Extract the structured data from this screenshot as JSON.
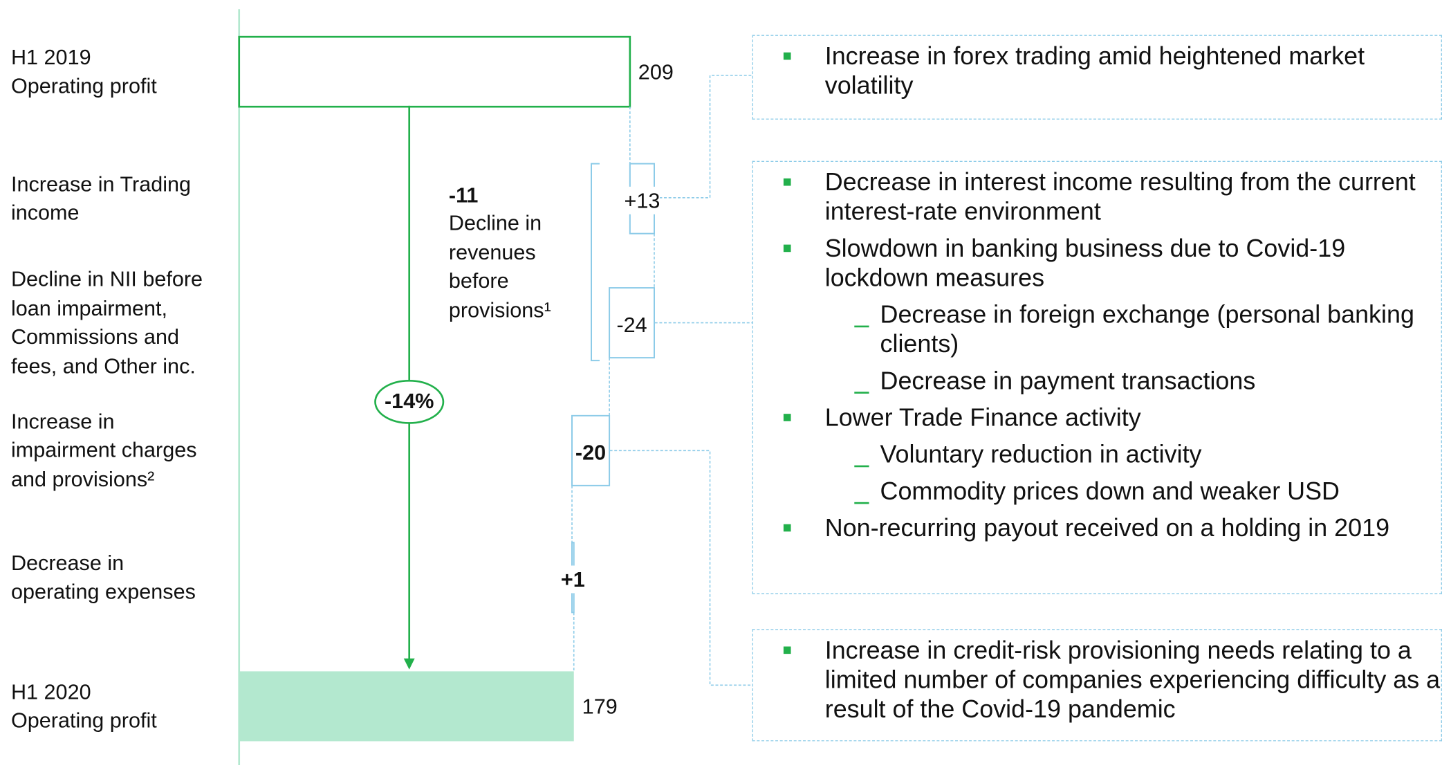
{
  "chart_data": {
    "type": "waterfall",
    "orientation": "horizontal",
    "categories": [
      "H1 2019\nOperating profit",
      "Increase in Trading\nincome",
      "Decline in NII before\nloan impairment,\nCommissions and\nfees, and Other inc.",
      "Increase in\nimpairment charges\nand provisions²",
      "Decrease in\noperating expenses",
      "H1 2020\nOperating profit"
    ],
    "values": [
      209,
      13,
      -24,
      -20,
      1,
      179
    ],
    "value_labels": [
      "209",
      "+13",
      "-24",
      "-20",
      "+1",
      "179"
    ],
    "measure": [
      "absolute",
      "relative",
      "relative",
      "relative",
      "relative",
      "total"
    ],
    "colors": [
      "#22b04b",
      "#8ccbe8",
      "#8ccbe8",
      "#8ccbe8",
      "#8ccbe8",
      "#b3e8cf"
    ],
    "xlim": [
      0,
      209
    ],
    "annotations": {
      "change": "-14%",
      "subtotal": "-11",
      "subtotal_note": "Decline in\nrevenues\nbefore\nprovisions¹"
    }
  },
  "callouts": [
    {
      "items": [
        {
          "bullet": "square",
          "text": "Increase in forex trading amid heightened market volatility"
        }
      ]
    },
    {
      "items": [
        {
          "bullet": "square",
          "text": "Decrease in interest income resulting from the current interest-rate environment"
        },
        {
          "bullet": "square",
          "text": "Slowdown in banking business due to Covid-19 lockdown measures"
        },
        {
          "bullet": "dash",
          "text": "Decrease in foreign exchange (personal banking clients)"
        },
        {
          "bullet": "dash",
          "text": "Decrease in payment transactions"
        },
        {
          "bullet": "square",
          "text": "Lower Trade Finance activity"
        },
        {
          "bullet": "dash",
          "text": "Voluntary reduction in activity"
        },
        {
          "bullet": "dash",
          "text": "Commodity prices down and weaker USD"
        },
        {
          "bullet": "square",
          "text": "Non-recurring payout received on a holding in 2019"
        }
      ]
    },
    {
      "items": [
        {
          "bullet": "square",
          "text": "Increase in credit-risk provisioning needs relating to a limited number of companies experiencing difficulty as a result of the Covid-19 pandemic"
        }
      ]
    }
  ]
}
